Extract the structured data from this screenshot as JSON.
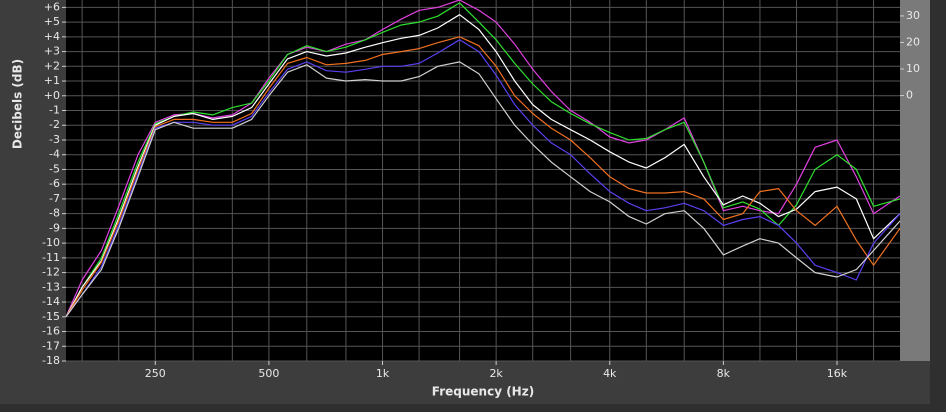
{
  "chart_data": {
    "type": "line",
    "xlabel": "Frequency (Hz)",
    "ylabel": "Decibels (dB)",
    "xscale": "log",
    "xlim": [
      145,
      23500
    ],
    "xticks": [
      250,
      500,
      {
        "value": 1000,
        "label": "1k"
      },
      {
        "value": 2000,
        "label": "2k"
      },
      {
        "value": 4000,
        "label": "4k"
      },
      {
        "value": 8000,
        "label": "8k"
      },
      {
        "value": 16000,
        "label": "16k"
      }
    ],
    "xgrid": [
      160,
      200,
      250,
      315,
      400,
      500,
      630,
      800,
      1000,
      1250,
      1600,
      2000,
      2500,
      3150,
      4000,
      5000,
      6300,
      8000,
      10000,
      12500,
      16000,
      20000
    ],
    "ylim": [
      -18,
      6.5
    ],
    "yticks": [
      {
        "value": 6,
        "label": "+6"
      },
      {
        "value": 5,
        "label": "+5"
      },
      {
        "value": 4,
        "label": "+4"
      },
      {
        "value": 3,
        "label": "+3"
      },
      {
        "value": 2,
        "label": "+2"
      },
      {
        "value": 1,
        "label": "+1"
      },
      {
        "value": 0,
        "label": "+0"
      },
      -1,
      -2,
      -3,
      -4,
      -5,
      -6,
      -7,
      -8,
      -9,
      -10,
      -11,
      -12,
      -13,
      -14,
      -15,
      -16,
      -17,
      -18
    ],
    "y2lim": [
      -100,
      36
    ],
    "y2ticks": [
      0,
      10,
      20,
      30
    ],
    "grid": true,
    "x": [
      145,
      160,
      180,
      200,
      225,
      250,
      280,
      315,
      355,
      400,
      450,
      500,
      560,
      630,
      710,
      800,
      900,
      1000,
      1120,
      1250,
      1400,
      1600,
      1800,
      2000,
      2240,
      2500,
      2800,
      3150,
      3550,
      4000,
      4500,
      5000,
      5600,
      6300,
      7100,
      8000,
      9000,
      10000,
      11200,
      12500,
      14000,
      16000,
      18000,
      20000,
      23500
    ],
    "series": [
      {
        "color": "#e040e0",
        "values": [
          -15,
          -12.5,
          -10.5,
          -7.5,
          -4,
          -1.8,
          -1.3,
          -1.2,
          -1.5,
          -1.3,
          -0.5,
          1.2,
          2.8,
          3.3,
          3,
          3.5,
          3.8,
          4.5,
          5.2,
          5.8,
          6,
          6.5,
          5.8,
          5,
          3.5,
          1.8,
          0.3,
          -1,
          -1.8,
          -2.8,
          -3.2,
          -3,
          -2.3,
          -1.5,
          -4.5,
          -7.8,
          -7.5,
          -7.8,
          -8,
          -6,
          -3.5,
          -3,
          -5.5,
          -8,
          -6.8
        ]
      },
      {
        "color": "#30e030",
        "values": [
          -15,
          -13,
          -11,
          -8,
          -4.5,
          -1.9,
          -1.4,
          -1.1,
          -1.3,
          -0.8,
          -0.5,
          1,
          2.8,
          3.4,
          3,
          3.3,
          3.8,
          4.3,
          4.8,
          5,
          5.4,
          6.3,
          5,
          3.8,
          2.2,
          0.8,
          -0.4,
          -1.2,
          -1.9,
          -2.5,
          -3,
          -2.9,
          -2.3,
          -1.8,
          -4.5,
          -7.6,
          -7.2,
          -7.7,
          -8.8,
          -7.4,
          -5,
          -4,
          -5,
          -7.5,
          -7
        ]
      },
      {
        "color": "#ffffff",
        "values": [
          -15,
          -13,
          -11.2,
          -8.3,
          -4.8,
          -2,
          -1.4,
          -1.2,
          -1.6,
          -1.4,
          -0.8,
          0.8,
          2.5,
          3,
          2.7,
          2.9,
          3.3,
          3.6,
          3.9,
          4.1,
          4.6,
          5.5,
          4.5,
          3,
          1,
          -0.6,
          -1.6,
          -2.3,
          -3,
          -3.8,
          -4.5,
          -4.9,
          -4.2,
          -3.3,
          -5.5,
          -7.4,
          -6.8,
          -7.3,
          -8.2,
          -7.7,
          -6.5,
          -6.2,
          -7,
          -9.7,
          -8
        ]
      },
      {
        "color": "#f07020",
        "values": [
          -15,
          -13.2,
          -11.3,
          -8.5,
          -5,
          -2.1,
          -1.6,
          -1.6,
          -1.8,
          -1.8,
          -1.2,
          0.5,
          2.2,
          2.6,
          2.1,
          2.2,
          2.4,
          2.8,
          3,
          3.2,
          3.6,
          4,
          3.4,
          2,
          0,
          -1.2,
          -2.2,
          -3,
          -4.2,
          -5.5,
          -6.3,
          -6.6,
          -6.6,
          -6.5,
          -7,
          -8.4,
          -8,
          -6.5,
          -6.3,
          -7.8,
          -8.8,
          -7.5,
          -9.8,
          -11.5,
          -9
        ]
      },
      {
        "color": "#5a40f0",
        "values": [
          -15,
          -13.5,
          -11.6,
          -8.8,
          -5.3,
          -2.2,
          -1.8,
          -1.8,
          -2,
          -2,
          -1.4,
          0.2,
          1.8,
          2.3,
          1.7,
          1.6,
          1.8,
          2,
          2,
          2.2,
          2.9,
          3.8,
          3,
          1.4,
          -0.6,
          -2,
          -3.2,
          -4,
          -5.3,
          -6.5,
          -7.3,
          -7.8,
          -7.6,
          -7.3,
          -7.8,
          -8.8,
          -8.4,
          -8.2,
          -8.8,
          -10,
          -11.5,
          -12,
          -12.5,
          -10,
          -8
        ]
      },
      {
        "color": "#d0d0d0",
        "values": [
          -15,
          -13.5,
          -11.8,
          -9,
          -5.5,
          -2.3,
          -1.8,
          -2.2,
          -2.2,
          -2.2,
          -1.6,
          0,
          1.6,
          2.1,
          1.2,
          1,
          1.1,
          1,
          1,
          1.3,
          2,
          2.3,
          1.5,
          -0.2,
          -2,
          -3.3,
          -4.5,
          -5.5,
          -6.5,
          -7.2,
          -8.2,
          -8.7,
          -8,
          -7.8,
          -9,
          -10.8,
          -10.2,
          -9.7,
          -10,
          -11,
          -12,
          -12.3,
          -11.8,
          -10.5,
          -8.5
        ]
      }
    ]
  }
}
